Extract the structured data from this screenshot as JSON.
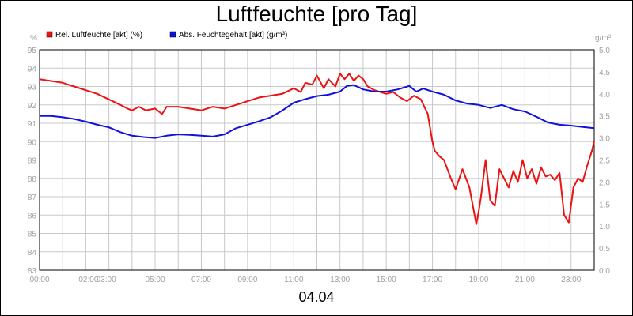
{
  "footer": "04.04",
  "chart_data": {
    "type": "line",
    "title": "Luftfeuchte [pro Tag]",
    "ylabel_left": "%",
    "ylabel_right": "g/m³",
    "ylim_left": [
      83,
      95
    ],
    "ylim_right": [
      0.0,
      5.0
    ],
    "xlim_hours": [
      0,
      24
    ],
    "grid": true,
    "legend_position": "top-left",
    "x_tick_labels": [
      "00:00",
      "02:00",
      "03:00",
      "05:00",
      "07:00",
      "09:00",
      "11:00",
      "13:00",
      "15:00",
      "17:00",
      "19:00",
      "21:00",
      "23:00"
    ],
    "x_tick_hours": [
      0,
      2,
      3,
      5,
      7,
      9,
      11,
      13,
      15,
      17,
      19,
      21,
      23
    ],
    "y_left_ticks": [
      83,
      84,
      85,
      86,
      87,
      88,
      89,
      90,
      91,
      92,
      93,
      94,
      95
    ],
    "y_right_ticks": [
      "0.0",
      "0.5",
      "1.0",
      "1.5",
      "2.0",
      "2.5",
      "3.0",
      "3.5",
      "4.0",
      "4.5",
      "5.0"
    ],
    "series": [
      {
        "name": "Rel. Luftfeuchte [akt] (%)",
        "axis": "left",
        "color": "#ee1111",
        "x": [
          0,
          0.5,
          1,
          1.5,
          2,
          2.5,
          3,
          3.5,
          3.8,
          4,
          4.3,
          4.6,
          5,
          5.3,
          5.5,
          6,
          6.5,
          7,
          7.5,
          8,
          8.5,
          9,
          9.5,
          10,
          10.5,
          11,
          11.3,
          11.5,
          11.8,
          12,
          12.3,
          12.5,
          12.8,
          13,
          13.2,
          13.4,
          13.6,
          13.8,
          14,
          14.2,
          14.5,
          15,
          15.3,
          15.6,
          15.9,
          16.2,
          16.5,
          16.8,
          17,
          17.1,
          17.3,
          17.5,
          17.8,
          18,
          18.3,
          18.6,
          18.9,
          19,
          19.1,
          19.3,
          19.5,
          19.7,
          19.9,
          20.1,
          20.3,
          20.5,
          20.7,
          20.9,
          21.1,
          21.3,
          21.5,
          21.7,
          21.9,
          22.1,
          22.3,
          22.5,
          22.7,
          22.9,
          23.1,
          23.3,
          23.5,
          23.7,
          23.9,
          24
        ],
        "values": [
          93.4,
          93.3,
          93.2,
          93.0,
          92.8,
          92.6,
          92.3,
          92.0,
          91.8,
          91.7,
          91.9,
          91.7,
          91.8,
          91.5,
          91.9,
          91.9,
          91.8,
          91.7,
          91.9,
          91.8,
          92.0,
          92.2,
          92.4,
          92.5,
          92.6,
          92.9,
          92.7,
          93.2,
          93.1,
          93.6,
          92.9,
          93.4,
          93.0,
          93.7,
          93.4,
          93.7,
          93.3,
          93.6,
          93.4,
          93.0,
          92.8,
          92.6,
          92.7,
          92.4,
          92.2,
          92.5,
          92.3,
          91.5,
          90.0,
          89.5,
          89.2,
          89.0,
          88.0,
          87.4,
          88.5,
          87.5,
          85.5,
          86.2,
          87.0,
          89.0,
          86.8,
          86.5,
          88.5,
          88.0,
          87.5,
          88.4,
          87.8,
          89.0,
          88.0,
          88.5,
          87.7,
          88.6,
          88.1,
          88.2,
          87.9,
          88.3,
          86.0,
          85.6,
          87.5,
          88.0,
          87.8,
          88.7,
          89.5,
          90.0
        ]
      },
      {
        "name": "Abs. Feuchtegehalt [akt] (g/m³)",
        "axis": "right",
        "color": "#1111dd",
        "x": [
          0,
          0.5,
          1,
          1.5,
          2,
          2.5,
          3,
          3.5,
          4,
          4.5,
          5,
          5.5,
          6,
          6.5,
          7,
          7.5,
          8,
          8.5,
          9,
          9.5,
          10,
          10.5,
          11,
          11.5,
          12,
          12.5,
          13,
          13.3,
          13.6,
          14,
          14.5,
          15,
          15.5,
          16,
          16.3,
          16.6,
          17,
          17.5,
          18,
          18.5,
          19,
          19.5,
          20,
          20.5,
          21,
          21.5,
          22,
          22.5,
          23,
          23.5,
          24
        ],
        "values": [
          3.5,
          3.5,
          3.47,
          3.43,
          3.37,
          3.3,
          3.24,
          3.13,
          3.05,
          3.02,
          3.0,
          3.05,
          3.08,
          3.07,
          3.05,
          3.03,
          3.08,
          3.22,
          3.3,
          3.38,
          3.47,
          3.62,
          3.8,
          3.88,
          3.95,
          3.98,
          4.05,
          4.18,
          4.2,
          4.1,
          4.05,
          4.05,
          4.1,
          4.18,
          4.05,
          4.12,
          4.05,
          3.98,
          3.85,
          3.78,
          3.75,
          3.68,
          3.75,
          3.65,
          3.6,
          3.48,
          3.35,
          3.3,
          3.28,
          3.25,
          3.22
        ]
      }
    ]
  }
}
